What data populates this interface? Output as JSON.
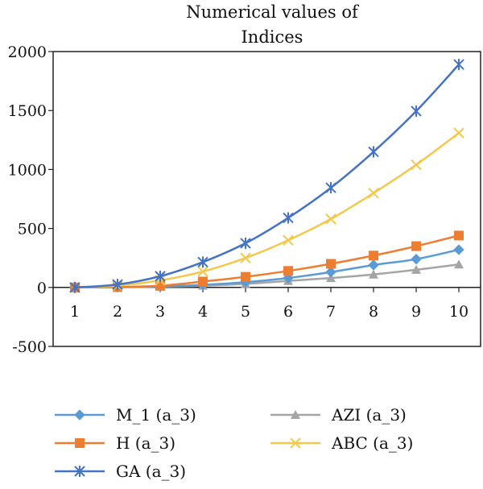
{
  "chart_data": {
    "type": "line",
    "title_lines": [
      "Numerical values of",
      "Indices"
    ],
    "xlabel": "",
    "ylabel": "",
    "x": [
      1,
      2,
      3,
      4,
      5,
      6,
      7,
      8,
      9,
      10
    ],
    "xlim": [
      1,
      10
    ],
    "ylim": [
      -500,
      2000
    ],
    "yticks": [
      -500,
      0,
      500,
      1000,
      1500,
      2000
    ],
    "grid": false,
    "legend_position": "bottom",
    "series": [
      {
        "name": "M_1 (a_3)",
        "color": "#5b9bd5",
        "marker": "diamond",
        "values": [
          0,
          2,
          8,
          22,
          45,
          80,
          130,
          190,
          240,
          320
        ]
      },
      {
        "name": "H (a_3)",
        "color": "#ed7d31",
        "marker": "square",
        "values": [
          0,
          3,
          15,
          50,
          90,
          140,
          200,
          270,
          350,
          440
        ]
      },
      {
        "name": "GA (a_3)",
        "color": "#4472c4",
        "marker": "star",
        "values": [
          0,
          25,
          95,
          215,
          375,
          590,
          845,
          1150,
          1495,
          1890
        ]
      },
      {
        "name": "AZI (a_3)",
        "color": "#a5a5a5",
        "marker": "triangle",
        "values": [
          0,
          2,
          6,
          15,
          30,
          55,
          80,
          110,
          150,
          195
        ]
      },
      {
        "name": "ABC (a_3)",
        "color": "#f2c94c",
        "marker": "cross",
        "values": [
          0,
          15,
          60,
          135,
          250,
          400,
          580,
          800,
          1040,
          1310
        ]
      }
    ]
  }
}
